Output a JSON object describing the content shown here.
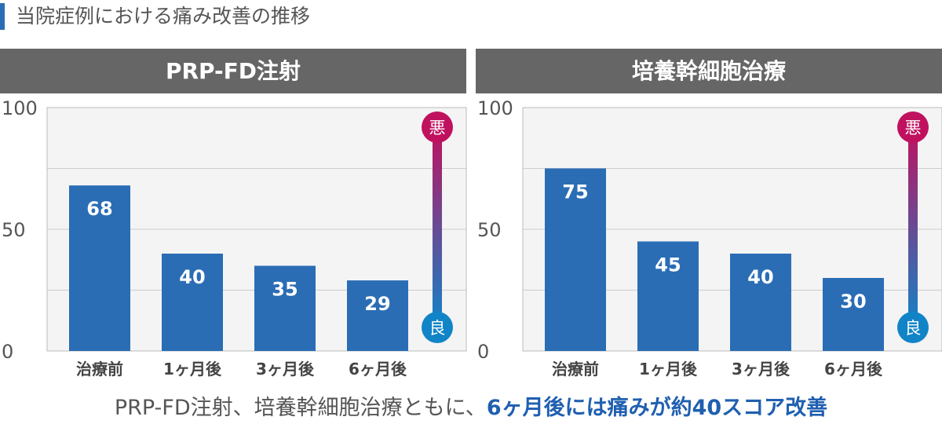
{
  "page_title": "当院症例における痛み改善の推移",
  "caption": {
    "plain": "PRP-FD注射、培養幹細胞治療ともに、",
    "highlight": "6ヶ月後には痛みが約40スコア改善"
  },
  "colors": {
    "bar": "#2a6db5",
    "header": "#666666",
    "accent": "#1f5fb0",
    "scale_bad": "#c0115f",
    "scale_good": "#1184c8"
  },
  "scale_labels": {
    "bad": "悪",
    "good": "良"
  },
  "chart_data": [
    {
      "type": "bar",
      "title": "PRP-FD注射",
      "categories": [
        "治療前",
        "1ヶ月後",
        "3ヶ月後",
        "6ヶ月後"
      ],
      "values": [
        68,
        40,
        35,
        29
      ],
      "ylim": [
        0,
        100
      ],
      "yticks": [
        0,
        50,
        100
      ],
      "grid": true
    },
    {
      "type": "bar",
      "title": "培養幹細胞治療",
      "categories": [
        "治療前",
        "1ヶ月後",
        "3ヶ月後",
        "6ヶ月後"
      ],
      "values": [
        75,
        45,
        40,
        30
      ],
      "ylim": [
        0,
        100
      ],
      "yticks": [
        0,
        50,
        100
      ],
      "grid": true
    }
  ]
}
